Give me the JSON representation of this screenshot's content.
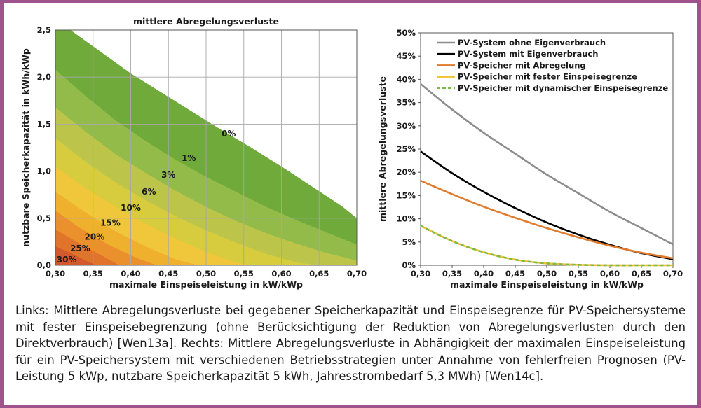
{
  "colors": {
    "frame": "#a0528c",
    "grid": "#a8a8a8",
    "contour_bands": [
      "#d2592b",
      "#e0742a",
      "#ea902c",
      "#efb02e",
      "#f0c63a",
      "#d6cc3e",
      "#bcc44a",
      "#93bb4a",
      "#6faa3a"
    ],
    "series": [
      "#8c8c8c",
      "#000000",
      "#e07a2c",
      "#f0c32e",
      "#7cb84a"
    ]
  },
  "chart_data": [
    {
      "type": "heatmap",
      "subtype": "filled-contour",
      "title": "mittlere Abregelungsverluste",
      "xlabel": "maximale Einspeiseleistung in kW/kWp",
      "ylabel": "nutzbare Speicherkapazität in kWh/kWp",
      "xlim": [
        0.3,
        0.7
      ],
      "ylim": [
        0.0,
        2.5
      ],
      "x_ticks": [
        "0,30",
        "0,35",
        "0,40",
        "0,45",
        "0,50",
        "0,55",
        "0,60",
        "0,65",
        "0,70"
      ],
      "y_ticks": [
        "0,0",
        "0,5",
        "1,0",
        "1,5",
        "2,0",
        "2,5"
      ],
      "grid": true,
      "contours": [
        {
          "label": "30%",
          "x": [
            0.3,
            0.32,
            0.34,
            0.355
          ],
          "y": [
            0.2,
            0.13,
            0.05,
            0.0
          ]
        },
        {
          "label": "25%",
          "x": [
            0.3,
            0.33,
            0.36,
            0.385
          ],
          "y": [
            0.38,
            0.24,
            0.11,
            0.0
          ]
        },
        {
          "label": "20%",
          "x": [
            0.3,
            0.33,
            0.37,
            0.41,
            0.435
          ],
          "y": [
            0.58,
            0.41,
            0.22,
            0.07,
            0.0
          ]
        },
        {
          "label": "15%",
          "x": [
            0.3,
            0.34,
            0.38,
            0.42,
            0.46,
            0.49
          ],
          "y": [
            0.78,
            0.56,
            0.36,
            0.2,
            0.06,
            0.0
          ]
        },
        {
          "label": "10%",
          "x": [
            0.3,
            0.34,
            0.38,
            0.42,
            0.46,
            0.5,
            0.54,
            0.56
          ],
          "y": [
            1.05,
            0.82,
            0.62,
            0.44,
            0.28,
            0.14,
            0.03,
            0.0
          ]
        },
        {
          "label": "6%",
          "x": [
            0.3,
            0.34,
            0.38,
            0.42,
            0.46,
            0.5,
            0.54,
            0.58,
            0.62,
            0.65
          ],
          "y": [
            1.35,
            1.1,
            0.88,
            0.69,
            0.52,
            0.37,
            0.24,
            0.12,
            0.03,
            0.0
          ]
        },
        {
          "label": "3%",
          "x": [
            0.3,
            0.34,
            0.38,
            0.42,
            0.46,
            0.5,
            0.54,
            0.58,
            0.62,
            0.66,
            0.7
          ],
          "y": [
            1.68,
            1.42,
            1.18,
            0.98,
            0.79,
            0.62,
            0.47,
            0.34,
            0.23,
            0.13,
            0.05
          ]
        },
        {
          "label": "1%",
          "x": [
            0.3,
            0.34,
            0.38,
            0.42,
            0.46,
            0.5,
            0.54,
            0.58,
            0.62,
            0.66,
            0.7
          ],
          "y": [
            2.08,
            1.8,
            1.54,
            1.32,
            1.12,
            0.94,
            0.78,
            0.62,
            0.48,
            0.35,
            0.22
          ]
        },
        {
          "label": "0%",
          "x": [
            0.32,
            0.36,
            0.4,
            0.44,
            0.48,
            0.52,
            0.56,
            0.6,
            0.64,
            0.68,
            0.7
          ],
          "y": [
            2.5,
            2.27,
            2.04,
            1.84,
            1.64,
            1.44,
            1.25,
            1.05,
            0.84,
            0.63,
            0.5
          ]
        }
      ],
      "label_positions": [
        {
          "label": "30%",
          "x": 0.315,
          "y": 0.06
        },
        {
          "label": "25%",
          "x": 0.333,
          "y": 0.18
        },
        {
          "label": "20%",
          "x": 0.352,
          "y": 0.3
        },
        {
          "label": "15%",
          "x": 0.373,
          "y": 0.45
        },
        {
          "label": "10%",
          "x": 0.4,
          "y": 0.61
        },
        {
          "label": "6%",
          "x": 0.424,
          "y": 0.78
        },
        {
          "label": "3%",
          "x": 0.45,
          "y": 0.96
        },
        {
          "label": "1%",
          "x": 0.477,
          "y": 1.14
        },
        {
          "label": "0%",
          "x": 0.53,
          "y": 1.4
        }
      ]
    },
    {
      "type": "line",
      "xlabel": "maximale Einspeiseleistung in kW/kWp",
      "ylabel": "mittlere Abregelungsverluste",
      "xlim": [
        0.3,
        0.7
      ],
      "ylim": [
        0,
        50
      ],
      "x_ticks": [
        "0,30",
        "0,35",
        "0,40",
        "0,45",
        "0,50",
        "0,55",
        "0,60",
        "0,65",
        "0,70"
      ],
      "y_ticks": [
        "0%",
        "5%",
        "10%",
        "15%",
        "20%",
        "25%",
        "30%",
        "35%",
        "40%",
        "45%",
        "50%"
      ],
      "grid": false,
      "legend_position": "top-right",
      "x": [
        0.3,
        0.35,
        0.4,
        0.45,
        0.5,
        0.55,
        0.6,
        0.65,
        0.7
      ],
      "series": [
        {
          "name": "PV-System ohne Eigenverbrauch",
          "values": [
            39.0,
            33.5,
            28.5,
            24.0,
            19.5,
            15.5,
            11.5,
            8.0,
            4.5
          ]
        },
        {
          "name": "PV-System mit Eigenverbrauch",
          "values": [
            24.5,
            19.8,
            15.8,
            12.3,
            9.2,
            6.6,
            4.4,
            2.6,
            1.3
          ]
        },
        {
          "name": "PV-Speicher mit Abregelung",
          "values": [
            18.2,
            15.3,
            12.6,
            10.2,
            8.0,
            6.0,
            4.2,
            2.7,
            1.5
          ]
        },
        {
          "name": "PV-Speicher mit fester Einspeisegrenze",
          "values": [
            8.5,
            5.2,
            2.8,
            1.2,
            0.4,
            0.1,
            0.0,
            0.0,
            0.0
          ]
        },
        {
          "name": "PV-Speicher mit dynamischer Einspeisegrenze",
          "values": [
            8.5,
            5.2,
            2.8,
            1.2,
            0.4,
            0.1,
            0.0,
            0.0,
            0.0
          ]
        }
      ]
    }
  ],
  "caption": "Links: Mittlere Abregelungsverluste bei gegebener Speicherkapazität und Einspeisegrenze für PV-Speichersysteme mit fester Einspeisebegrenzung (ohne Berücksichtigung der Reduktion von Abregelungsverlusten durch den Direktverbrauch) [Wen13a]. Rechts: Mittlere Abregelungsverluste in Abhängigkeit der maximalen Einspeiseleistung für ein PV-Speichersystem mit verschiedenen Betriebsstrategien unter Annahme von fehlerfreien Prognosen (PV-Leistung 5 kWp, nutzbare Speicherkapazität 5 kWh, Jahresstrombedarf 5,3 MWh) [Wen14c]."
}
